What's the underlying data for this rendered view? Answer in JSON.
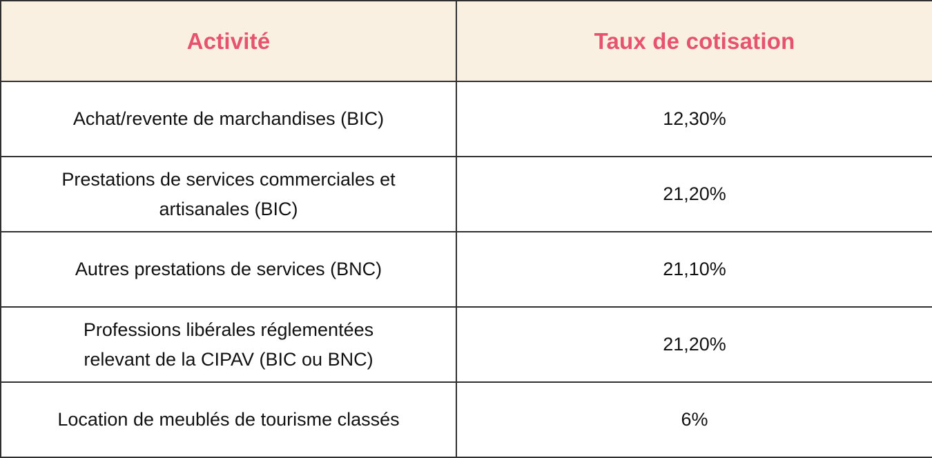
{
  "colors": {
    "header_bg": "#faf0e1",
    "header_text": "#e5536f",
    "body_bg": "#ffffff",
    "body_text": "#111111",
    "border": "#2f2f2f"
  },
  "table": {
    "columns": [
      {
        "label": "Activité"
      },
      {
        "label": "Taux de cotisation"
      }
    ],
    "rows": [
      {
        "activite": "Achat/revente de marchandises (BIC)",
        "taux": "12,30%"
      },
      {
        "activite": "Prestations de services commerciales et\nartisanales (BIC)",
        "taux": "21,20%"
      },
      {
        "activite": "Autres prestations de services (BNC)",
        "taux": "21,10%"
      },
      {
        "activite": "Professions libérales réglementées\nrelevant de la CIPAV (BIC ou BNC)",
        "taux": "21,20%"
      },
      {
        "activite": "Location de meublés de tourisme classés",
        "taux": "6%"
      }
    ]
  },
  "chart_data": {
    "type": "table",
    "title": "",
    "columns": [
      "Activité",
      "Taux de cotisation"
    ],
    "rows": [
      [
        "Achat/revente de marchandises (BIC)",
        "12,30%"
      ],
      [
        "Prestations de services commerciales et artisanales (BIC)",
        "21,20%"
      ],
      [
        "Autres prestations de services (BNC)",
        "21,10%"
      ],
      [
        "Professions libérales réglementées relevant de la CIPAV (BIC ou BNC)",
        "21,20%"
      ],
      [
        "Location de meublés de tourisme classés",
        "6%"
      ]
    ],
    "values_percent": [
      12.3,
      21.2,
      21.1,
      21.2,
      6.0
    ]
  }
}
